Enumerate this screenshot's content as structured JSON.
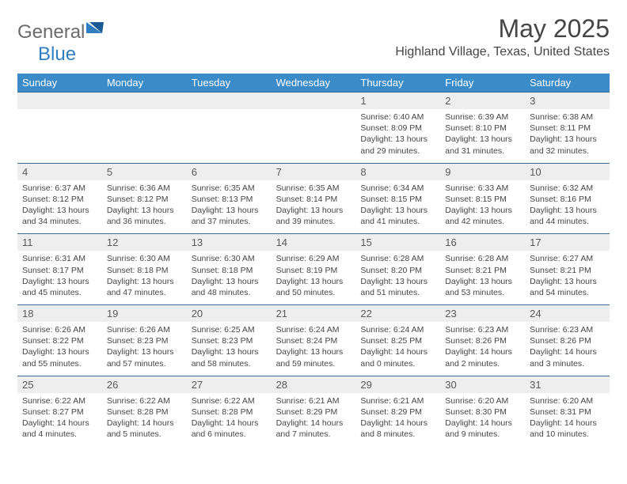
{
  "logo": {
    "text1": "General",
    "text2": "Blue"
  },
  "title": "May 2025",
  "location": "Highland Village, Texas, United States",
  "colors": {
    "header_bg": "#3b8bc8",
    "header_text": "#ffffff",
    "daynum_bg": "#eeeeee",
    "daynum_text": "#5a5a5a",
    "body_text": "#454545",
    "logo_gray": "#6b6b6b",
    "logo_blue": "#2f7fc2",
    "row_border": "#3b6a94"
  },
  "day_names": [
    "Sunday",
    "Monday",
    "Tuesday",
    "Wednesday",
    "Thursday",
    "Friday",
    "Saturday"
  ],
  "weeks": [
    [
      null,
      null,
      null,
      null,
      {
        "n": "1",
        "sr": "6:40 AM",
        "ss": "8:09 PM",
        "dl1": "Daylight: 13 hours",
        "dl2": "and 29 minutes."
      },
      {
        "n": "2",
        "sr": "6:39 AM",
        "ss": "8:10 PM",
        "dl1": "Daylight: 13 hours",
        "dl2": "and 31 minutes."
      },
      {
        "n": "3",
        "sr": "6:38 AM",
        "ss": "8:11 PM",
        "dl1": "Daylight: 13 hours",
        "dl2": "and 32 minutes."
      }
    ],
    [
      {
        "n": "4",
        "sr": "6:37 AM",
        "ss": "8:12 PM",
        "dl1": "Daylight: 13 hours",
        "dl2": "and 34 minutes."
      },
      {
        "n": "5",
        "sr": "6:36 AM",
        "ss": "8:12 PM",
        "dl1": "Daylight: 13 hours",
        "dl2": "and 36 minutes."
      },
      {
        "n": "6",
        "sr": "6:35 AM",
        "ss": "8:13 PM",
        "dl1": "Daylight: 13 hours",
        "dl2": "and 37 minutes."
      },
      {
        "n": "7",
        "sr": "6:35 AM",
        "ss": "8:14 PM",
        "dl1": "Daylight: 13 hours",
        "dl2": "and 39 minutes."
      },
      {
        "n": "8",
        "sr": "6:34 AM",
        "ss": "8:15 PM",
        "dl1": "Daylight: 13 hours",
        "dl2": "and 41 minutes."
      },
      {
        "n": "9",
        "sr": "6:33 AM",
        "ss": "8:15 PM",
        "dl1": "Daylight: 13 hours",
        "dl2": "and 42 minutes."
      },
      {
        "n": "10",
        "sr": "6:32 AM",
        "ss": "8:16 PM",
        "dl1": "Daylight: 13 hours",
        "dl2": "and 44 minutes."
      }
    ],
    [
      {
        "n": "11",
        "sr": "6:31 AM",
        "ss": "8:17 PM",
        "dl1": "Daylight: 13 hours",
        "dl2": "and 45 minutes."
      },
      {
        "n": "12",
        "sr": "6:30 AM",
        "ss": "8:18 PM",
        "dl1": "Daylight: 13 hours",
        "dl2": "and 47 minutes."
      },
      {
        "n": "13",
        "sr": "6:30 AM",
        "ss": "8:18 PM",
        "dl1": "Daylight: 13 hours",
        "dl2": "and 48 minutes."
      },
      {
        "n": "14",
        "sr": "6:29 AM",
        "ss": "8:19 PM",
        "dl1": "Daylight: 13 hours",
        "dl2": "and 50 minutes."
      },
      {
        "n": "15",
        "sr": "6:28 AM",
        "ss": "8:20 PM",
        "dl1": "Daylight: 13 hours",
        "dl2": "and 51 minutes."
      },
      {
        "n": "16",
        "sr": "6:28 AM",
        "ss": "8:21 PM",
        "dl1": "Daylight: 13 hours",
        "dl2": "and 53 minutes."
      },
      {
        "n": "17",
        "sr": "6:27 AM",
        "ss": "8:21 PM",
        "dl1": "Daylight: 13 hours",
        "dl2": "and 54 minutes."
      }
    ],
    [
      {
        "n": "18",
        "sr": "6:26 AM",
        "ss": "8:22 PM",
        "dl1": "Daylight: 13 hours",
        "dl2": "and 55 minutes."
      },
      {
        "n": "19",
        "sr": "6:26 AM",
        "ss": "8:23 PM",
        "dl1": "Daylight: 13 hours",
        "dl2": "and 57 minutes."
      },
      {
        "n": "20",
        "sr": "6:25 AM",
        "ss": "8:23 PM",
        "dl1": "Daylight: 13 hours",
        "dl2": "and 58 minutes."
      },
      {
        "n": "21",
        "sr": "6:24 AM",
        "ss": "8:24 PM",
        "dl1": "Daylight: 13 hours",
        "dl2": "and 59 minutes."
      },
      {
        "n": "22",
        "sr": "6:24 AM",
        "ss": "8:25 PM",
        "dl1": "Daylight: 14 hours",
        "dl2": "and 0 minutes."
      },
      {
        "n": "23",
        "sr": "6:23 AM",
        "ss": "8:26 PM",
        "dl1": "Daylight: 14 hours",
        "dl2": "and 2 minutes."
      },
      {
        "n": "24",
        "sr": "6:23 AM",
        "ss": "8:26 PM",
        "dl1": "Daylight: 14 hours",
        "dl2": "and 3 minutes."
      }
    ],
    [
      {
        "n": "25",
        "sr": "6:22 AM",
        "ss": "8:27 PM",
        "dl1": "Daylight: 14 hours",
        "dl2": "and 4 minutes."
      },
      {
        "n": "26",
        "sr": "6:22 AM",
        "ss": "8:28 PM",
        "dl1": "Daylight: 14 hours",
        "dl2": "and 5 minutes."
      },
      {
        "n": "27",
        "sr": "6:22 AM",
        "ss": "8:28 PM",
        "dl1": "Daylight: 14 hours",
        "dl2": "and 6 minutes."
      },
      {
        "n": "28",
        "sr": "6:21 AM",
        "ss": "8:29 PM",
        "dl1": "Daylight: 14 hours",
        "dl2": "and 7 minutes."
      },
      {
        "n": "29",
        "sr": "6:21 AM",
        "ss": "8:29 PM",
        "dl1": "Daylight: 14 hours",
        "dl2": "and 8 minutes."
      },
      {
        "n": "30",
        "sr": "6:20 AM",
        "ss": "8:30 PM",
        "dl1": "Daylight: 14 hours",
        "dl2": "and 9 minutes."
      },
      {
        "n": "31",
        "sr": "6:20 AM",
        "ss": "8:31 PM",
        "dl1": "Daylight: 14 hours",
        "dl2": "and 10 minutes."
      }
    ]
  ],
  "labels": {
    "sunrise": "Sunrise:",
    "sunset": "Sunset:"
  }
}
